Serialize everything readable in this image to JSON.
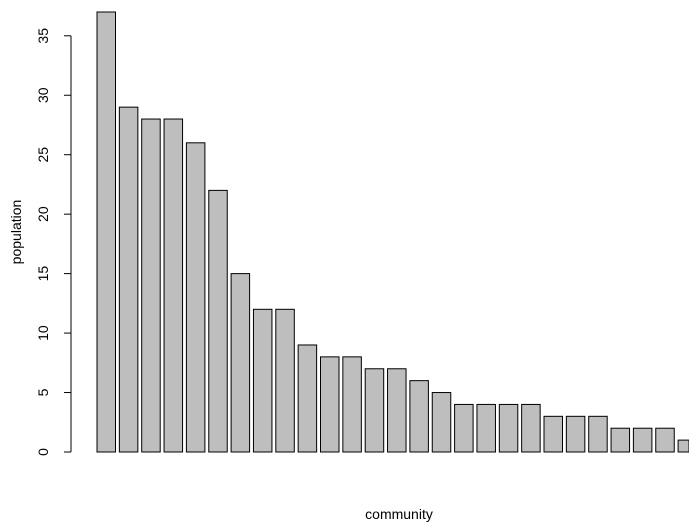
{
  "chart_data": {
    "type": "bar",
    "values": [
      37,
      29,
      28,
      28,
      26,
      22,
      15,
      12,
      12,
      9,
      8,
      8,
      7,
      7,
      6,
      5,
      4,
      4,
      4,
      4,
      3,
      3,
      3,
      2,
      2,
      2,
      1
    ],
    "xlabel": "community",
    "ylabel": "population",
    "ylim": [
      0,
      37
    ],
    "yticks": [
      0,
      5,
      10,
      15,
      20,
      25,
      30,
      35
    ],
    "grid": false,
    "bar_color": "#bebebe",
    "edge_color": "#000000"
  }
}
